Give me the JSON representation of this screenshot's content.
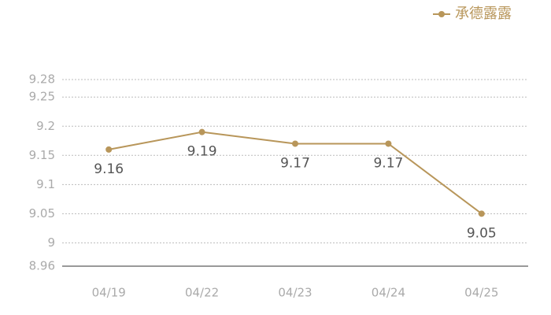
{
  "chart_data": {
    "type": "line",
    "categories": [
      "04/19",
      "04/22",
      "04/23",
      "04/24",
      "04/25"
    ],
    "series": [
      {
        "name": "承德露露",
        "color": "#b8965a",
        "values": [
          9.16,
          9.19,
          9.17,
          9.17,
          9.05
        ]
      }
    ],
    "ylim": [
      8.96,
      9.28
    ],
    "yticks": [
      8.96,
      9,
      9.05,
      9.1,
      9.15,
      9.2,
      9.25,
      9.28
    ],
    "grid": true,
    "legend": "top-right"
  }
}
